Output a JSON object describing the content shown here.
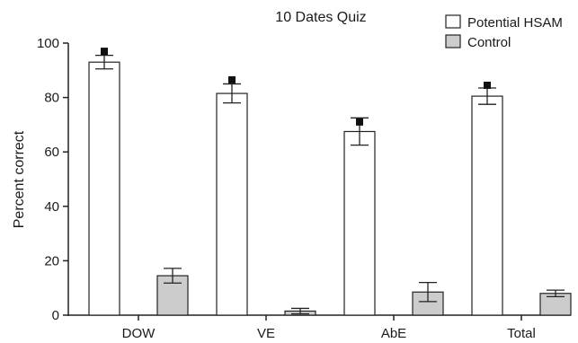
{
  "chart_data": {
    "type": "bar",
    "title": "10 Dates Quiz",
    "xlabel": "",
    "ylabel": "Percent correct",
    "categories": [
      "DOW",
      "VE",
      "AbE",
      "Total"
    ],
    "ylim": [
      0,
      100
    ],
    "yticks": [
      0,
      20,
      40,
      60,
      80,
      100
    ],
    "series": [
      {
        "name": "Potential HSAM",
        "color": "#ffffff",
        "values": [
          93,
          81.5,
          67.5,
          80.5
        ],
        "error": [
          2.5,
          3.5,
          5,
          3
        ],
        "markers": [
          97,
          86.5,
          71,
          84.5
        ]
      },
      {
        "name": "Control",
        "color": "#cccccc",
        "values": [
          14.5,
          1.5,
          8.5,
          8
        ],
        "error": [
          2.7,
          1,
          3.5,
          1.2
        ]
      }
    ],
    "legend_position": "top-right",
    "grid": false
  }
}
